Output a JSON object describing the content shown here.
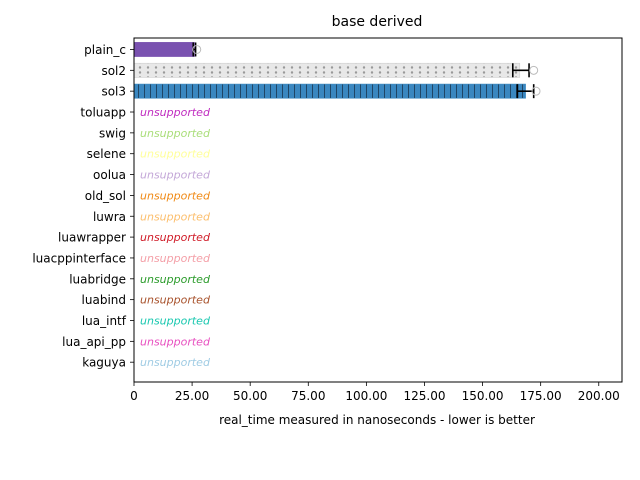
{
  "chart_data": {
    "type": "bar",
    "orientation": "horizontal",
    "title": "base derived",
    "xlabel": "real_time measured in nanoseconds - lower is better",
    "xlim": [
      0,
      210
    ],
    "xticks": [
      "0",
      "25.00",
      "50.00",
      "75.00",
      "100.00",
      "125.00",
      "150.00",
      "175.00",
      "200.00"
    ],
    "grid": false,
    "categories": [
      "plain_c",
      "sol2",
      "sol3",
      "toluapp",
      "swig",
      "selene",
      "oolua",
      "old_sol",
      "luwra",
      "luawrapper",
      "luacppinterface",
      "luabridge",
      "luabind",
      "lua_intf",
      "lua_api_pp",
      "kaguya"
    ],
    "bars": [
      {
        "category": "plain_c",
        "value": 26.0,
        "err_low": 25.5,
        "err_high": 26.5,
        "outlier": 27.0,
        "color": "#7a52b0",
        "pattern": "solid"
      },
      {
        "category": "sol2",
        "value": 166.0,
        "err_low": 163.0,
        "err_high": 170.0,
        "outlier": 172.0,
        "color": "#e8e8e8",
        "pattern": "dots"
      },
      {
        "category": "sol3",
        "value": 168.5,
        "err_low": 165.0,
        "err_high": 172.0,
        "outlier": 173.0,
        "color": "#3a87c0",
        "pattern": "vlines"
      }
    ],
    "unsupported_label": "unsupported",
    "unsupported": [
      {
        "category": "toluapp",
        "color": "#c02cc0"
      },
      {
        "category": "swig",
        "color": "#aade7a"
      },
      {
        "category": "selene",
        "color": "#ffff9a"
      },
      {
        "category": "oolua",
        "color": "#c4a8d8"
      },
      {
        "category": "old_sol",
        "color": "#f08a16"
      },
      {
        "category": "luwra",
        "color": "#fcbf6e"
      },
      {
        "category": "luawrapper",
        "color": "#d01c28"
      },
      {
        "category": "luacppinterface",
        "color": "#f4a0a8"
      },
      {
        "category": "luabridge",
        "color": "#2c9c2c"
      },
      {
        "category": "luabind",
        "color": "#a8522c"
      },
      {
        "category": "lua_intf",
        "color": "#1ac8b0"
      },
      {
        "category": "lua_api_pp",
        "color": "#e850c0"
      },
      {
        "category": "kaguya",
        "color": "#a0cce4"
      }
    ]
  }
}
